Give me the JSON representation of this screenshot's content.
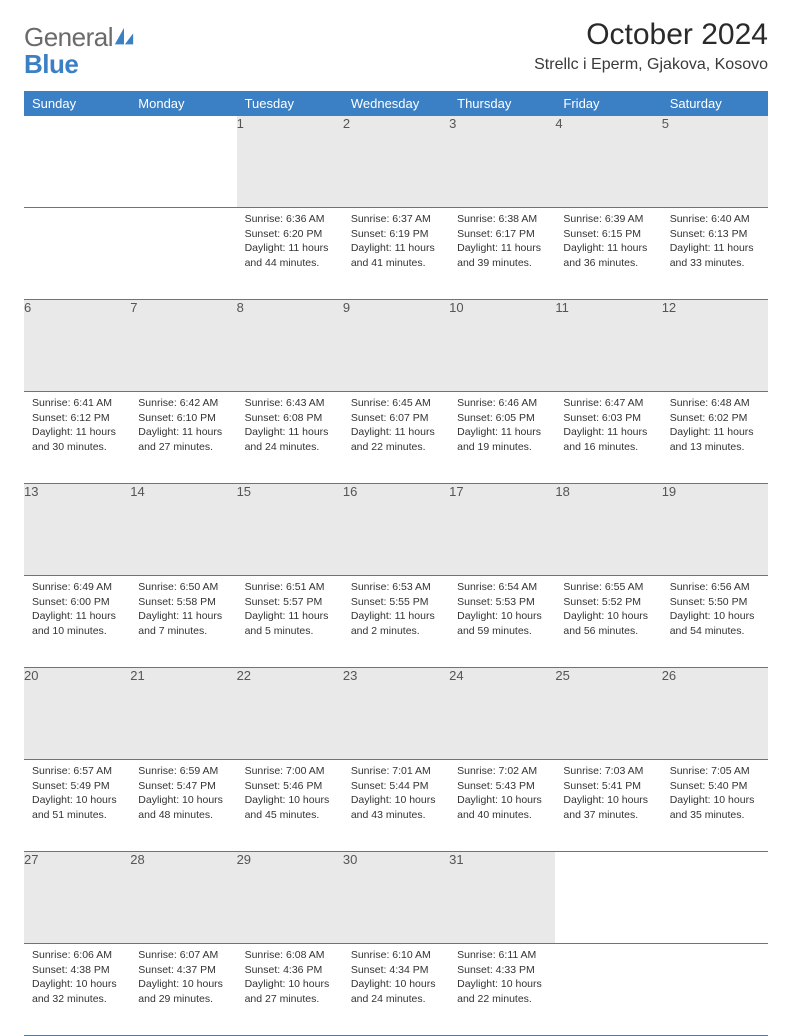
{
  "brand": {
    "word1": "General",
    "word2": "Blue"
  },
  "title": "October 2024",
  "location": "Strellc i Eperm, Gjakova, Kosovo",
  "colors": {
    "accent": "#3b7fc4",
    "header_text": "#ffffff",
    "daybar": "#e9e9e9",
    "text": "#333333"
  },
  "weekdays": [
    "Sunday",
    "Monday",
    "Tuesday",
    "Wednesday",
    "Thursday",
    "Friday",
    "Saturday"
  ],
  "weeks": [
    [
      null,
      null,
      {
        "n": "1",
        "sunrise": "6:36 AM",
        "sunset": "6:20 PM",
        "daylight": "11 hours and 44 minutes."
      },
      {
        "n": "2",
        "sunrise": "6:37 AM",
        "sunset": "6:19 PM",
        "daylight": "11 hours and 41 minutes."
      },
      {
        "n": "3",
        "sunrise": "6:38 AM",
        "sunset": "6:17 PM",
        "daylight": "11 hours and 39 minutes."
      },
      {
        "n": "4",
        "sunrise": "6:39 AM",
        "sunset": "6:15 PM",
        "daylight": "11 hours and 36 minutes."
      },
      {
        "n": "5",
        "sunrise": "6:40 AM",
        "sunset": "6:13 PM",
        "daylight": "11 hours and 33 minutes."
      }
    ],
    [
      {
        "n": "6",
        "sunrise": "6:41 AM",
        "sunset": "6:12 PM",
        "daylight": "11 hours and 30 minutes."
      },
      {
        "n": "7",
        "sunrise": "6:42 AM",
        "sunset": "6:10 PM",
        "daylight": "11 hours and 27 minutes."
      },
      {
        "n": "8",
        "sunrise": "6:43 AM",
        "sunset": "6:08 PM",
        "daylight": "11 hours and 24 minutes."
      },
      {
        "n": "9",
        "sunrise": "6:45 AM",
        "sunset": "6:07 PM",
        "daylight": "11 hours and 22 minutes."
      },
      {
        "n": "10",
        "sunrise": "6:46 AM",
        "sunset": "6:05 PM",
        "daylight": "11 hours and 19 minutes."
      },
      {
        "n": "11",
        "sunrise": "6:47 AM",
        "sunset": "6:03 PM",
        "daylight": "11 hours and 16 minutes."
      },
      {
        "n": "12",
        "sunrise": "6:48 AM",
        "sunset": "6:02 PM",
        "daylight": "11 hours and 13 minutes."
      }
    ],
    [
      {
        "n": "13",
        "sunrise": "6:49 AM",
        "sunset": "6:00 PM",
        "daylight": "11 hours and 10 minutes."
      },
      {
        "n": "14",
        "sunrise": "6:50 AM",
        "sunset": "5:58 PM",
        "daylight": "11 hours and 7 minutes."
      },
      {
        "n": "15",
        "sunrise": "6:51 AM",
        "sunset": "5:57 PM",
        "daylight": "11 hours and 5 minutes."
      },
      {
        "n": "16",
        "sunrise": "6:53 AM",
        "sunset": "5:55 PM",
        "daylight": "11 hours and 2 minutes."
      },
      {
        "n": "17",
        "sunrise": "6:54 AM",
        "sunset": "5:53 PM",
        "daylight": "10 hours and 59 minutes."
      },
      {
        "n": "18",
        "sunrise": "6:55 AM",
        "sunset": "5:52 PM",
        "daylight": "10 hours and 56 minutes."
      },
      {
        "n": "19",
        "sunrise": "6:56 AM",
        "sunset": "5:50 PM",
        "daylight": "10 hours and 54 minutes."
      }
    ],
    [
      {
        "n": "20",
        "sunrise": "6:57 AM",
        "sunset": "5:49 PM",
        "daylight": "10 hours and 51 minutes."
      },
      {
        "n": "21",
        "sunrise": "6:59 AM",
        "sunset": "5:47 PM",
        "daylight": "10 hours and 48 minutes."
      },
      {
        "n": "22",
        "sunrise": "7:00 AM",
        "sunset": "5:46 PM",
        "daylight": "10 hours and 45 minutes."
      },
      {
        "n": "23",
        "sunrise": "7:01 AM",
        "sunset": "5:44 PM",
        "daylight": "10 hours and 43 minutes."
      },
      {
        "n": "24",
        "sunrise": "7:02 AM",
        "sunset": "5:43 PM",
        "daylight": "10 hours and 40 minutes."
      },
      {
        "n": "25",
        "sunrise": "7:03 AM",
        "sunset": "5:41 PM",
        "daylight": "10 hours and 37 minutes."
      },
      {
        "n": "26",
        "sunrise": "7:05 AM",
        "sunset": "5:40 PM",
        "daylight": "10 hours and 35 minutes."
      }
    ],
    [
      {
        "n": "27",
        "sunrise": "6:06 AM",
        "sunset": "4:38 PM",
        "daylight": "10 hours and 32 minutes."
      },
      {
        "n": "28",
        "sunrise": "6:07 AM",
        "sunset": "4:37 PM",
        "daylight": "10 hours and 29 minutes."
      },
      {
        "n": "29",
        "sunrise": "6:08 AM",
        "sunset": "4:36 PM",
        "daylight": "10 hours and 27 minutes."
      },
      {
        "n": "30",
        "sunrise": "6:10 AM",
        "sunset": "4:34 PM",
        "daylight": "10 hours and 24 minutes."
      },
      {
        "n": "31",
        "sunrise": "6:11 AM",
        "sunset": "4:33 PM",
        "daylight": "10 hours and 22 minutes."
      },
      null,
      null
    ]
  ],
  "labels": {
    "sunrise": "Sunrise:",
    "sunset": "Sunset:",
    "daylight": "Daylight:"
  }
}
